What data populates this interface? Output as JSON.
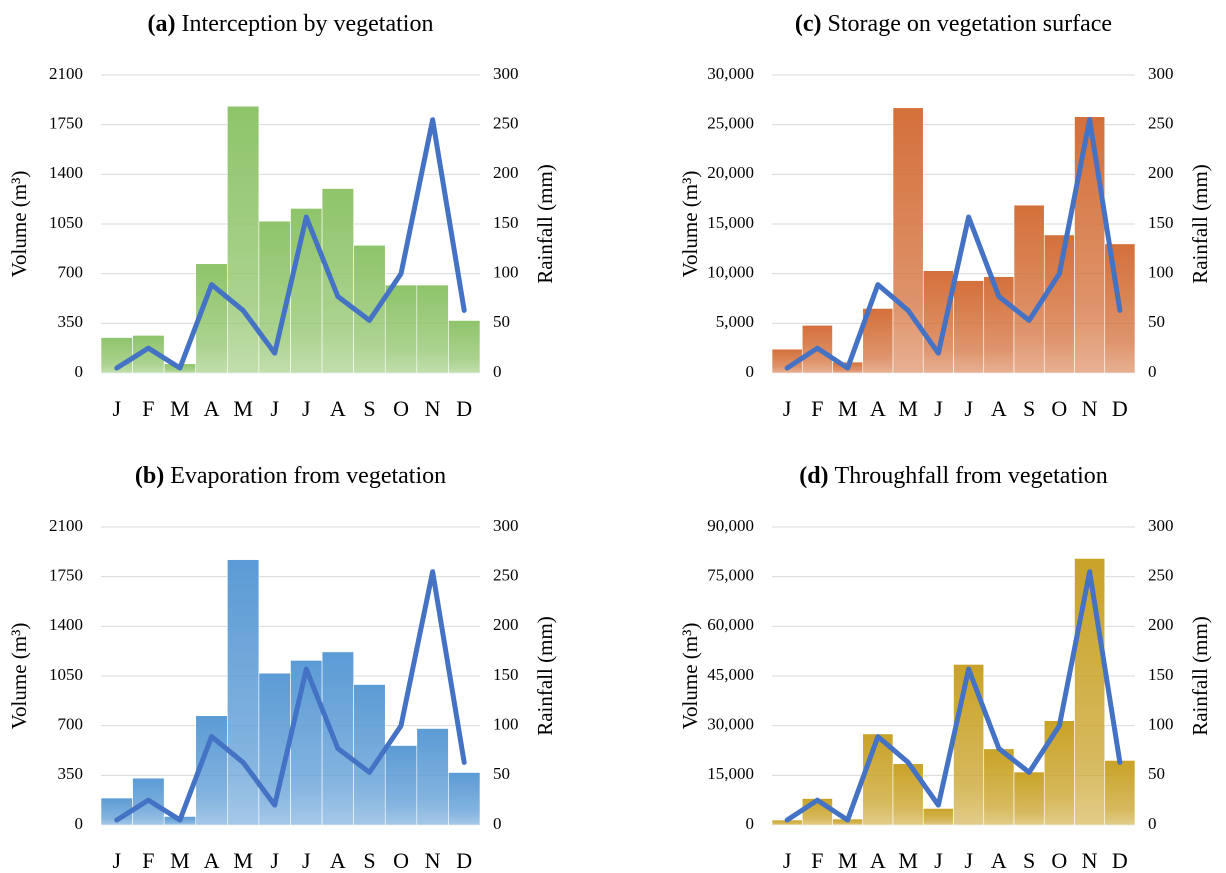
{
  "chart_data": [
    {
      "type": "bar-line",
      "title_label": "(a)",
      "title": "Interception by vegetation",
      "y_label": "Volume (m³)",
      "y2_label": "Rainfall (mm)",
      "categories": [
        "J",
        "F",
        "M",
        "A",
        "M",
        "J",
        "J",
        "A",
        "S",
        "O",
        "N",
        "D"
      ],
      "series": [
        {
          "color": "#8fc46a",
          "values": [
            250,
            265,
            65,
            770,
            1880,
            1070,
            1160,
            1300,
            900,
            620,
            620,
            370
          ]
        },
        {
          "color": "#4472c4",
          "axis": "y2",
          "values": [
            5,
            25,
            5,
            89,
            63,
            20,
            157,
            77,
            53,
            100,
            255,
            63
          ]
        }
      ],
      "ylim": [
        0,
        2100
      ],
      "yticks": [
        0,
        350,
        700,
        1050,
        1400,
        1750,
        2100
      ],
      "y2lim": [
        0,
        300
      ],
      "y2ticks": [
        0,
        50,
        100,
        150,
        200,
        250,
        300
      ],
      "grid": true
    },
    {
      "type": "bar-line",
      "title_label": "(b)",
      "title": "Evaporation from vegetation",
      "y_label": "Volume (m³)",
      "y2_label": "Rainfall (mm)",
      "categories": [
        "J",
        "F",
        "M",
        "A",
        "M",
        "J",
        "J",
        "A",
        "S",
        "O",
        "N",
        "D"
      ],
      "series": [
        {
          "color": "#5b9bd5",
          "values": [
            190,
            330,
            60,
            770,
            1870,
            1070,
            1160,
            1220,
            990,
            560,
            680,
            370
          ]
        },
        {
          "color": "#4472c4",
          "axis": "y2",
          "values": [
            5,
            25,
            5,
            89,
            63,
            20,
            157,
            77,
            53,
            100,
            255,
            63
          ]
        }
      ],
      "ylim": [
        0,
        2100
      ],
      "yticks": [
        0,
        350,
        700,
        1050,
        1400,
        1750,
        2100
      ],
      "y2lim": [
        0,
        300
      ],
      "y2ticks": [
        0,
        50,
        100,
        150,
        200,
        250,
        300
      ],
      "grid": true
    },
    {
      "type": "bar-line",
      "title_label": "(c)",
      "title": "Storage on vegetation surface",
      "y_label": "Volume (m³)",
      "y2_label": "Rainfall (mm)",
      "categories": [
        "J",
        "F",
        "M",
        "A",
        "M",
        "J",
        "J",
        "A",
        "S",
        "O",
        "N",
        "D"
      ],
      "series": [
        {
          "color": "#d4703a",
          "values": [
            2400,
            4800,
            1100,
            6500,
            26700,
            10300,
            9300,
            9700,
            16900,
            13900,
            25800,
            13000
          ]
        },
        {
          "color": "#4472c4",
          "axis": "y2",
          "values": [
            5,
            25,
            5,
            89,
            63,
            20,
            157,
            77,
            53,
            100,
            255,
            63
          ]
        }
      ],
      "ylim": [
        0,
        30000
      ],
      "yticks": [
        0,
        {
          "value": 5000,
          "label": "5,000"
        },
        {
          "value": 10000,
          "label": "10,000"
        },
        {
          "value": 15000,
          "label": "15,000"
        },
        {
          "value": 20000,
          "label": "20,000"
        },
        {
          "value": 25000,
          "label": "25,000"
        },
        {
          "value": 30000,
          "label": "30,000"
        }
      ],
      "y2lim": [
        0,
        300
      ],
      "y2ticks": [
        0,
        50,
        100,
        150,
        200,
        250,
        300
      ],
      "grid": true
    },
    {
      "type": "bar-line",
      "title_label": "(d)",
      "title": "Throughfall from vegetation",
      "y_label": "Volume (m³)",
      "y2_label": "Rainfall (mm)",
      "categories": [
        "J",
        "F",
        "M",
        "A",
        "M",
        "J",
        "J",
        "A",
        "S",
        "O",
        "N",
        "D"
      ],
      "series": [
        {
          "color": "#c9a227",
          "values": [
            1500,
            8000,
            1800,
            27500,
            18500,
            5000,
            48500,
            23000,
            16000,
            31500,
            80500,
            19500
          ]
        },
        {
          "color": "#4472c4",
          "axis": "y2",
          "values": [
            5,
            25,
            5,
            89,
            63,
            20,
            157,
            77,
            53,
            100,
            255,
            63
          ]
        }
      ],
      "ylim": [
        0,
        90000
      ],
      "yticks": [
        0,
        {
          "value": 15000,
          "label": "15,000"
        },
        {
          "value": 30000,
          "label": "30,000"
        },
        {
          "value": 45000,
          "label": "45,000"
        },
        {
          "value": 60000,
          "label": "60,000"
        },
        {
          "value": 75000,
          "label": "75,000"
        },
        {
          "value": 90000,
          "label": "90,000"
        }
      ],
      "y2lim": [
        0,
        300
      ],
      "y2ticks": [
        0,
        50,
        100,
        150,
        200,
        250,
        300
      ],
      "grid": true
    }
  ]
}
